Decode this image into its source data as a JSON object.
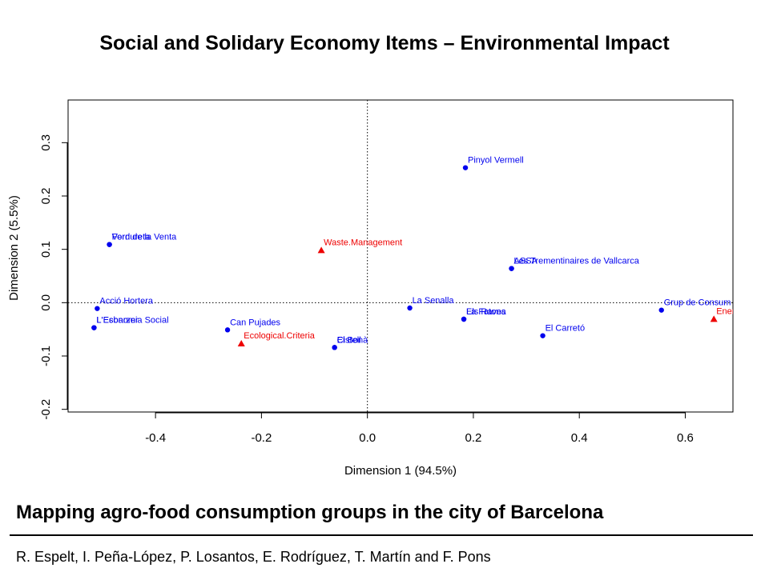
{
  "header": {
    "title": "Social and Solidary Economy Items – Environmental Impact"
  },
  "footer": {
    "subtitle": "Mapping agro-food consumption groups in the city of Barcelona",
    "authors": "R. Espelt, I. Peña-López, P. Losantos, E. Rodríguez, T. Martín and F. Pons"
  },
  "chart_data": {
    "type": "scatter",
    "title": "",
    "xlabel": "Dimension 1 (94.5%)",
    "ylabel": "Dimension 2 (5.5%)",
    "xlim": [
      -0.565,
      0.69
    ],
    "ylim": [
      -0.205,
      0.38
    ],
    "xticks": [
      -0.4,
      -0.2,
      0.0,
      0.2,
      0.4,
      0.6
    ],
    "xtick_labels": [
      "-0.4",
      "-0.2",
      "0.0",
      "0.2",
      "0.4",
      "0.6"
    ],
    "yticks": [
      -0.2,
      -0.1,
      0.0,
      0.1,
      0.2,
      0.3
    ],
    "ytick_labels": [
      "-0.2",
      "-0.1",
      "0.0",
      "0.1",
      "0.2",
      "0.3"
    ],
    "reference_lines": {
      "x": 0,
      "y": 0,
      "style": "dotted"
    },
    "grid": false,
    "colors": {
      "groups": "#0000ee",
      "criteria": "#ee0000"
    },
    "series": [
      {
        "name": "groups",
        "marker": "circle",
        "points": [
          {
            "x": 0.185,
            "y": 0.253,
            "label": "Pinyol Vermell"
          },
          {
            "x": -0.487,
            "y": 0.109,
            "label": "Verdureta"
          },
          {
            "x": -0.487,
            "y": 0.109,
            "label": "Forn de la Venta"
          },
          {
            "x": 0.272,
            "y": 0.064,
            "label": "Les Trementinaires de Vallcarca"
          },
          {
            "x": 0.272,
            "y": 0.064,
            "label": "ASSA"
          },
          {
            "x": -0.51,
            "y": -0.011,
            "label": "Acció Hortera"
          },
          {
            "x": 0.08,
            "y": -0.01,
            "label": "La Senalla"
          },
          {
            "x": 0.555,
            "y": -0.014,
            "label": "Grup de Consum de Bi"
          },
          {
            "x": 0.182,
            "y": -0.031,
            "label": "La Fatona"
          },
          {
            "x": 0.182,
            "y": -0.031,
            "label": "Els Raves"
          },
          {
            "x": -0.516,
            "y": -0.047,
            "label": "L'Economia Social"
          },
          {
            "x": -0.516,
            "y": -0.047,
            "label": "L'Esbarzer"
          },
          {
            "x": -0.264,
            "y": -0.051,
            "label": "Can Pujades"
          },
          {
            "x": 0.331,
            "y": -0.062,
            "label": "El Carretó"
          },
          {
            "x": -0.062,
            "y": -0.084,
            "label": "El Bonà"
          },
          {
            "x": -0.062,
            "y": -0.084,
            "label": "Cistell"
          }
        ]
      },
      {
        "name": "criteria",
        "marker": "triangle",
        "points": [
          {
            "x": -0.087,
            "y": 0.099,
            "label": "Waste.Management"
          },
          {
            "x": -0.238,
            "y": -0.076,
            "label": "Ecological.Criteria"
          },
          {
            "x": 0.654,
            "y": -0.03,
            "label": "Energy.Effici"
          }
        ]
      }
    ]
  }
}
